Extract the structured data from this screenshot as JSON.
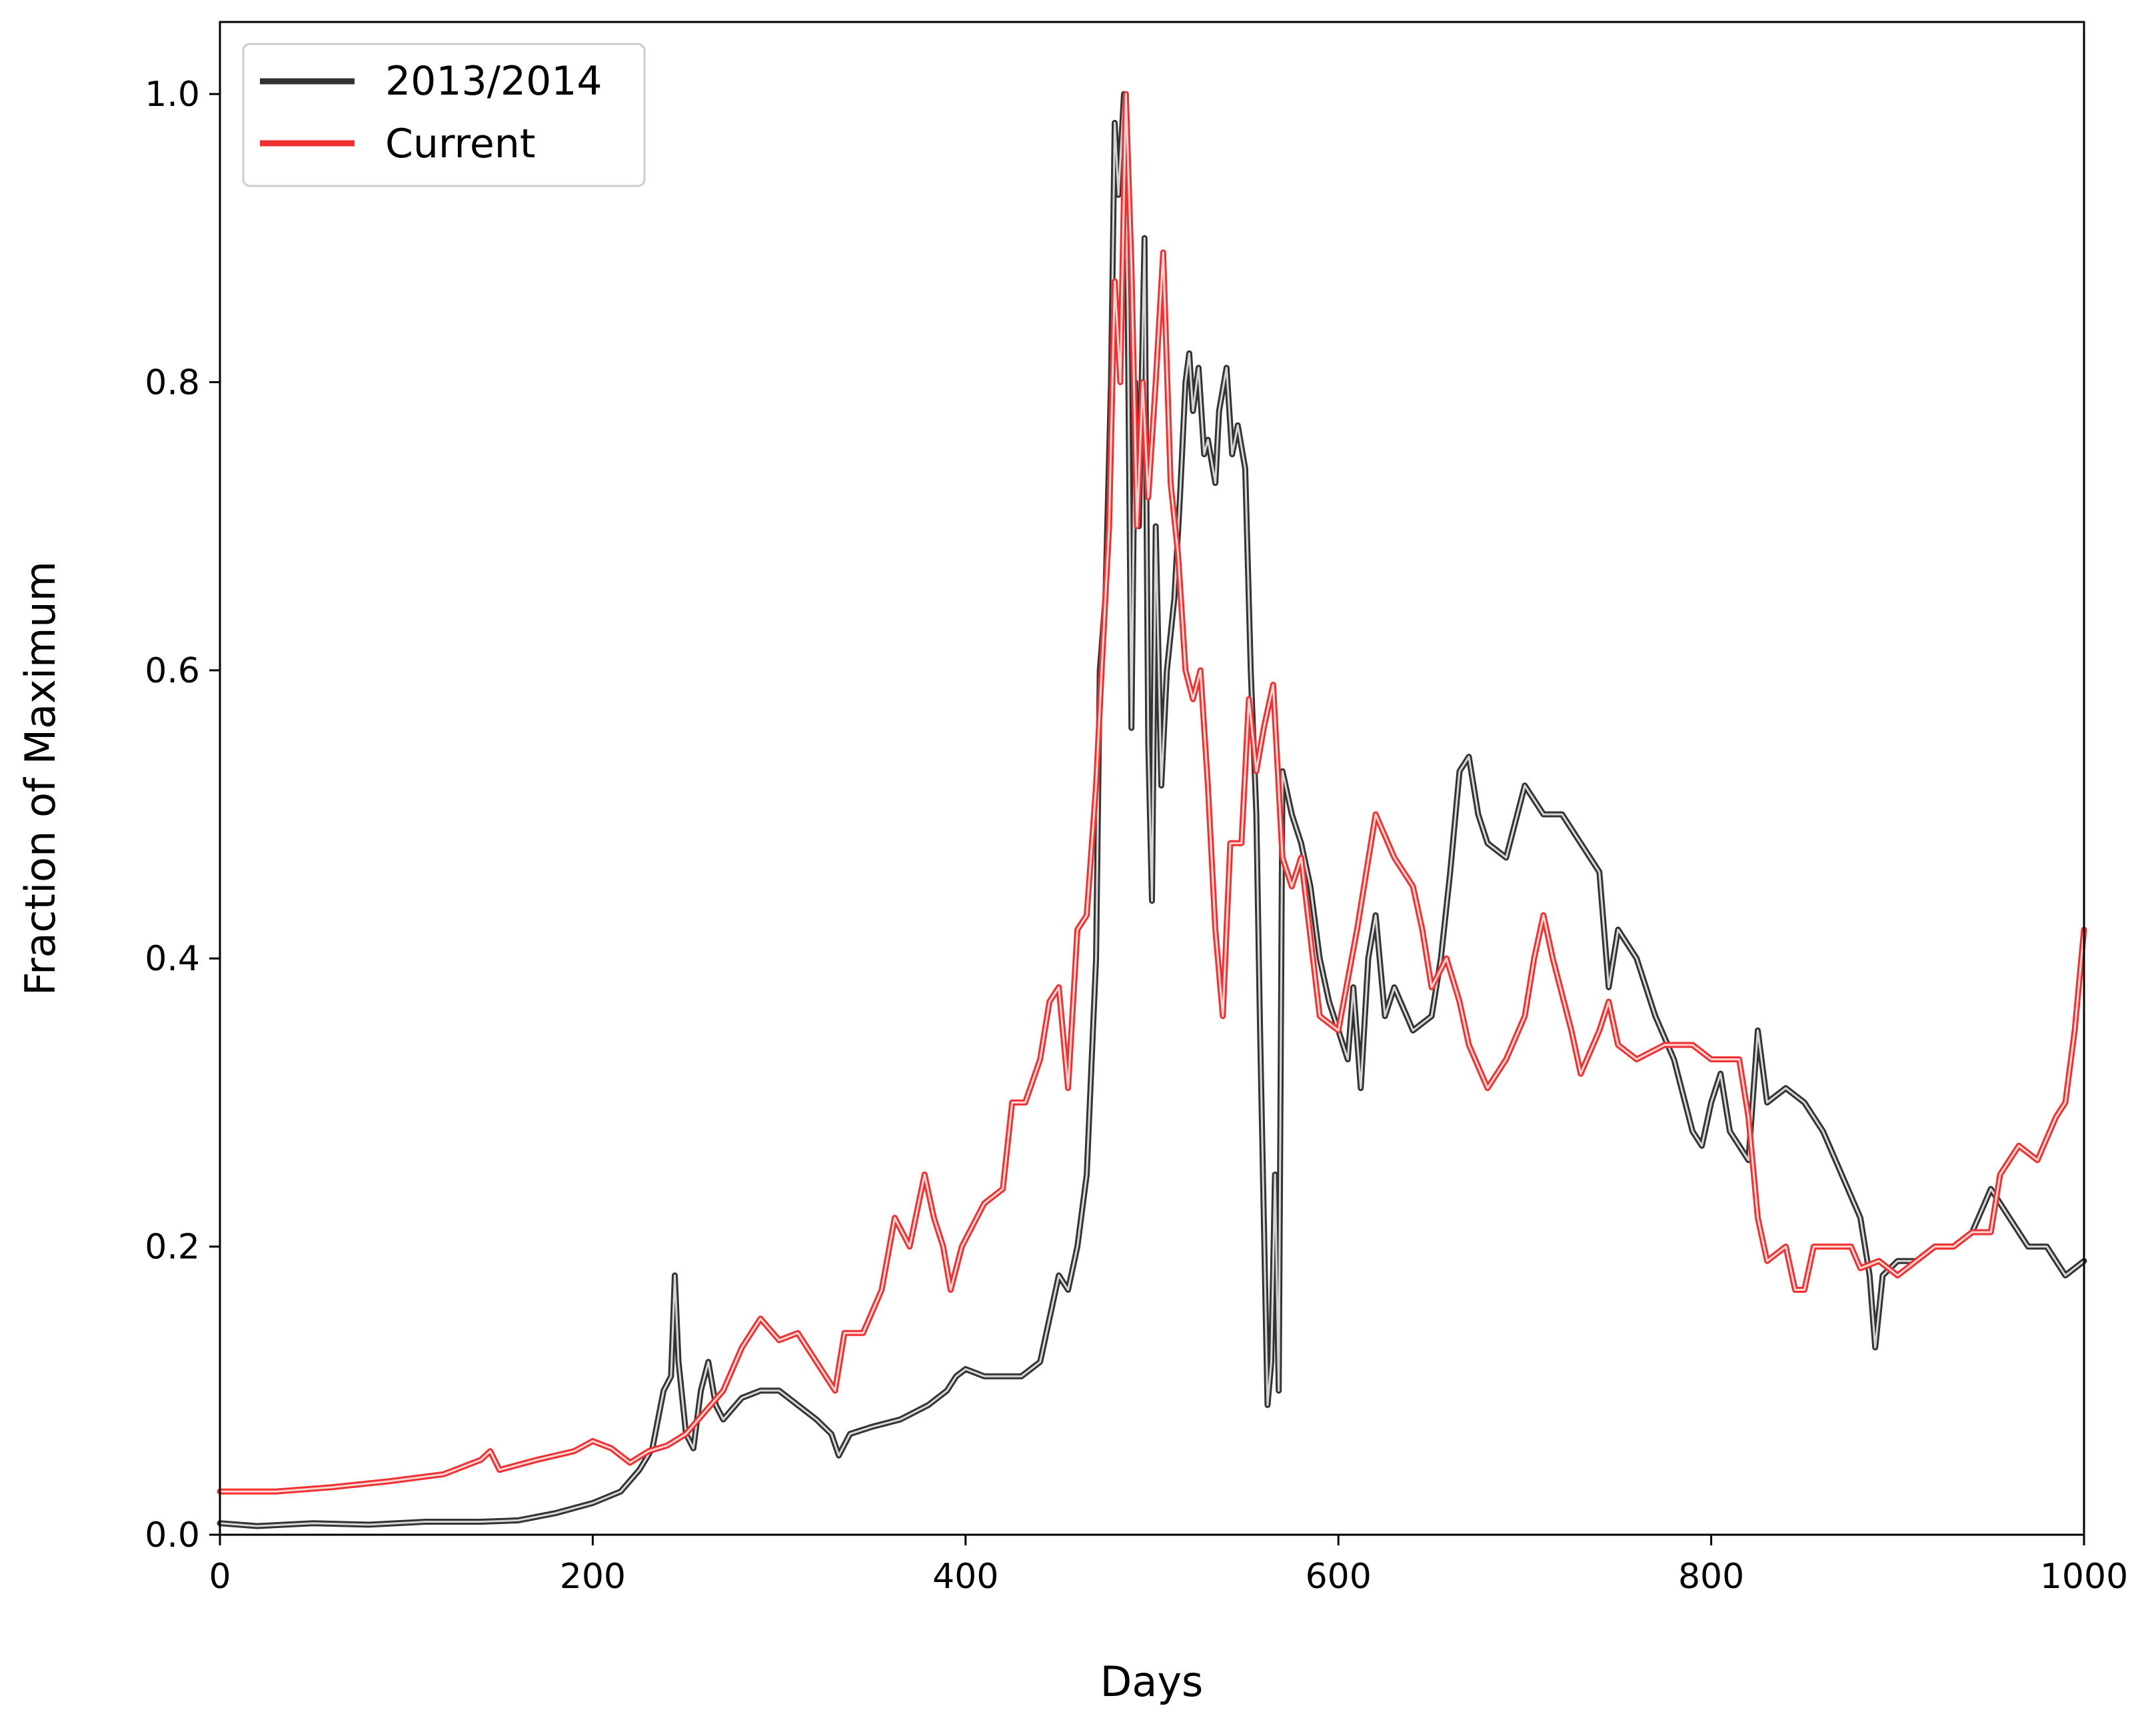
{
  "chart_data": {
    "type": "line",
    "xlabel": "Days",
    "ylabel": "Fraction of Maximum",
    "xlim": [
      0,
      1000
    ],
    "ylim": [
      0,
      1.05
    ],
    "xticks": [
      0,
      200,
      400,
      600,
      800,
      1000
    ],
    "yticks": [
      0.0,
      0.2,
      0.4,
      0.6,
      0.8,
      1.0
    ],
    "xtick_labels": [
      "0",
      "200",
      "400",
      "600",
      "800",
      "1000"
    ],
    "ytick_labels": [
      "0.0",
      "0.2",
      "0.4",
      "0.6",
      "0.8",
      "1.0"
    ],
    "grid": false,
    "legend_position": "top-left",
    "series": [
      {
        "name": "2013/2014",
        "color": "#333333",
        "points": [
          [
            0,
            0.008
          ],
          [
            20,
            0.006
          ],
          [
            50,
            0.008
          ],
          [
            80,
            0.007
          ],
          [
            110,
            0.009
          ],
          [
            140,
            0.009
          ],
          [
            160,
            0.01
          ],
          [
            180,
            0.015
          ],
          [
            200,
            0.022
          ],
          [
            215,
            0.03
          ],
          [
            225,
            0.045
          ],
          [
            232,
            0.06
          ],
          [
            238,
            0.1
          ],
          [
            242,
            0.11
          ],
          [
            244,
            0.18
          ],
          [
            246,
            0.12
          ],
          [
            250,
            0.07
          ],
          [
            254,
            0.06
          ],
          [
            258,
            0.1
          ],
          [
            262,
            0.12
          ],
          [
            266,
            0.09
          ],
          [
            270,
            0.08
          ],
          [
            280,
            0.095
          ],
          [
            290,
            0.1
          ],
          [
            300,
            0.1
          ],
          [
            310,
            0.09
          ],
          [
            320,
            0.08
          ],
          [
            328,
            0.07
          ],
          [
            332,
            0.055
          ],
          [
            338,
            0.07
          ],
          [
            350,
            0.075
          ],
          [
            365,
            0.08
          ],
          [
            380,
            0.09
          ],
          [
            390,
            0.1
          ],
          [
            395,
            0.11
          ],
          [
            400,
            0.115
          ],
          [
            410,
            0.11
          ],
          [
            420,
            0.11
          ],
          [
            430,
            0.11
          ],
          [
            440,
            0.12
          ],
          [
            445,
            0.15
          ],
          [
            450,
            0.18
          ],
          [
            455,
            0.17
          ],
          [
            460,
            0.2
          ],
          [
            465,
            0.25
          ],
          [
            470,
            0.4
          ],
          [
            472,
            0.6
          ],
          [
            475,
            0.65
          ],
          [
            478,
            0.8
          ],
          [
            480,
            0.98
          ],
          [
            482,
            0.93
          ],
          [
            485,
            1.0
          ],
          [
            487,
            0.85
          ],
          [
            489,
            0.56
          ],
          [
            491,
            0.8
          ],
          [
            493,
            0.7
          ],
          [
            496,
            0.9
          ],
          [
            498,
            0.55
          ],
          [
            500,
            0.44
          ],
          [
            502,
            0.7
          ],
          [
            505,
            0.52
          ],
          [
            508,
            0.6
          ],
          [
            512,
            0.65
          ],
          [
            515,
            0.72
          ],
          [
            518,
            0.8
          ],
          [
            520,
            0.82
          ],
          [
            522,
            0.78
          ],
          [
            525,
            0.81
          ],
          [
            528,
            0.75
          ],
          [
            530,
            0.76
          ],
          [
            534,
            0.73
          ],
          [
            536,
            0.78
          ],
          [
            540,
            0.81
          ],
          [
            543,
            0.75
          ],
          [
            546,
            0.77
          ],
          [
            550,
            0.74
          ],
          [
            553,
            0.6
          ],
          [
            556,
            0.5
          ],
          [
            558,
            0.35
          ],
          [
            560,
            0.22
          ],
          [
            562,
            0.09
          ],
          [
            564,
            0.12
          ],
          [
            566,
            0.25
          ],
          [
            568,
            0.1
          ],
          [
            570,
            0.53
          ],
          [
            575,
            0.5
          ],
          [
            580,
            0.48
          ],
          [
            585,
            0.45
          ],
          [
            590,
            0.4
          ],
          [
            595,
            0.37
          ],
          [
            600,
            0.35
          ],
          [
            605,
            0.33
          ],
          [
            608,
            0.38
          ],
          [
            612,
            0.31
          ],
          [
            616,
            0.4
          ],
          [
            620,
            0.43
          ],
          [
            625,
            0.36
          ],
          [
            630,
            0.38
          ],
          [
            640,
            0.35
          ],
          [
            650,
            0.36
          ],
          [
            655,
            0.4
          ],
          [
            660,
            0.46
          ],
          [
            665,
            0.53
          ],
          [
            670,
            0.54
          ],
          [
            675,
            0.5
          ],
          [
            680,
            0.48
          ],
          [
            690,
            0.47
          ],
          [
            700,
            0.52
          ],
          [
            710,
            0.5
          ],
          [
            720,
            0.5
          ],
          [
            730,
            0.48
          ],
          [
            740,
            0.46
          ],
          [
            745,
            0.38
          ],
          [
            750,
            0.42
          ],
          [
            760,
            0.4
          ],
          [
            770,
            0.36
          ],
          [
            780,
            0.33
          ],
          [
            790,
            0.28
          ],
          [
            795,
            0.27
          ],
          [
            800,
            0.3
          ],
          [
            805,
            0.32
          ],
          [
            810,
            0.28
          ],
          [
            815,
            0.27
          ],
          [
            820,
            0.26
          ],
          [
            825,
            0.35
          ],
          [
            830,
            0.3
          ],
          [
            840,
            0.31
          ],
          [
            850,
            0.3
          ],
          [
            860,
            0.28
          ],
          [
            870,
            0.25
          ],
          [
            880,
            0.22
          ],
          [
            885,
            0.18
          ],
          [
            888,
            0.13
          ],
          [
            892,
            0.18
          ],
          [
            900,
            0.19
          ],
          [
            910,
            0.19
          ],
          [
            920,
            0.2
          ],
          [
            930,
            0.2
          ],
          [
            940,
            0.21
          ],
          [
            950,
            0.24
          ],
          [
            960,
            0.22
          ],
          [
            970,
            0.2
          ],
          [
            980,
            0.2
          ],
          [
            990,
            0.18
          ],
          [
            1000,
            0.19
          ]
        ]
      },
      {
        "name": "Current",
        "color": "#f03030",
        "points": [
          [
            0,
            0.03
          ],
          [
            30,
            0.03
          ],
          [
            60,
            0.033
          ],
          [
            90,
            0.037
          ],
          [
            120,
            0.042
          ],
          [
            140,
            0.052
          ],
          [
            145,
            0.058
          ],
          [
            150,
            0.045
          ],
          [
            170,
            0.052
          ],
          [
            190,
            0.058
          ],
          [
            200,
            0.065
          ],
          [
            210,
            0.06
          ],
          [
            220,
            0.05
          ],
          [
            230,
            0.058
          ],
          [
            240,
            0.062
          ],
          [
            250,
            0.07
          ],
          [
            260,
            0.085
          ],
          [
            270,
            0.1
          ],
          [
            280,
            0.13
          ],
          [
            290,
            0.15
          ],
          [
            300,
            0.135
          ],
          [
            310,
            0.14
          ],
          [
            320,
            0.12
          ],
          [
            330,
            0.1
          ],
          [
            335,
            0.14
          ],
          [
            345,
            0.14
          ],
          [
            355,
            0.17
          ],
          [
            362,
            0.22
          ],
          [
            370,
            0.2
          ],
          [
            378,
            0.25
          ],
          [
            383,
            0.22
          ],
          [
            388,
            0.2
          ],
          [
            392,
            0.17
          ],
          [
            398,
            0.2
          ],
          [
            410,
            0.23
          ],
          [
            420,
            0.24
          ],
          [
            425,
            0.3
          ],
          [
            432,
            0.3
          ],
          [
            440,
            0.33
          ],
          [
            445,
            0.37
          ],
          [
            450,
            0.38
          ],
          [
            455,
            0.31
          ],
          [
            460,
            0.42
          ],
          [
            465,
            0.43
          ],
          [
            470,
            0.52
          ],
          [
            473,
            0.6
          ],
          [
            477,
            0.7
          ],
          [
            480,
            0.87
          ],
          [
            483,
            0.8
          ],
          [
            486,
            1.0
          ],
          [
            489,
            0.88
          ],
          [
            492,
            0.7
          ],
          [
            495,
            0.8
          ],
          [
            498,
            0.72
          ],
          [
            502,
            0.8
          ],
          [
            506,
            0.89
          ],
          [
            510,
            0.73
          ],
          [
            514,
            0.68
          ],
          [
            518,
            0.6
          ],
          [
            522,
            0.58
          ],
          [
            526,
            0.6
          ],
          [
            530,
            0.52
          ],
          [
            534,
            0.42
          ],
          [
            538,
            0.36
          ],
          [
            542,
            0.48
          ],
          [
            548,
            0.48
          ],
          [
            552,
            0.58
          ],
          [
            556,
            0.53
          ],
          [
            560,
            0.56
          ],
          [
            565,
            0.59
          ],
          [
            570,
            0.47
          ],
          [
            575,
            0.45
          ],
          [
            580,
            0.47
          ],
          [
            590,
            0.36
          ],
          [
            600,
            0.35
          ],
          [
            610,
            0.42
          ],
          [
            620,
            0.5
          ],
          [
            630,
            0.47
          ],
          [
            640,
            0.45
          ],
          [
            645,
            0.42
          ],
          [
            650,
            0.38
          ],
          [
            658,
            0.4
          ],
          [
            665,
            0.37
          ],
          [
            670,
            0.34
          ],
          [
            680,
            0.31
          ],
          [
            690,
            0.33
          ],
          [
            700,
            0.36
          ],
          [
            705,
            0.4
          ],
          [
            710,
            0.43
          ],
          [
            715,
            0.4
          ],
          [
            725,
            0.35
          ],
          [
            730,
            0.32
          ],
          [
            740,
            0.35
          ],
          [
            745,
            0.37
          ],
          [
            750,
            0.34
          ],
          [
            760,
            0.33
          ],
          [
            775,
            0.34
          ],
          [
            790,
            0.34
          ],
          [
            800,
            0.33
          ],
          [
            815,
            0.33
          ],
          [
            820,
            0.29
          ],
          [
            825,
            0.22
          ],
          [
            830,
            0.19
          ],
          [
            840,
            0.2
          ],
          [
            845,
            0.17
          ],
          [
            850,
            0.17
          ],
          [
            855,
            0.2
          ],
          [
            865,
            0.2
          ],
          [
            875,
            0.2
          ],
          [
            880,
            0.185
          ],
          [
            890,
            0.19
          ],
          [
            900,
            0.18
          ],
          [
            910,
            0.19
          ],
          [
            920,
            0.2
          ],
          [
            930,
            0.2
          ],
          [
            940,
            0.21
          ],
          [
            950,
            0.21
          ],
          [
            955,
            0.25
          ],
          [
            965,
            0.27
          ],
          [
            975,
            0.26
          ],
          [
            985,
            0.29
          ],
          [
            990,
            0.3
          ],
          [
            995,
            0.35
          ],
          [
            1000,
            0.42
          ]
        ]
      }
    ]
  }
}
